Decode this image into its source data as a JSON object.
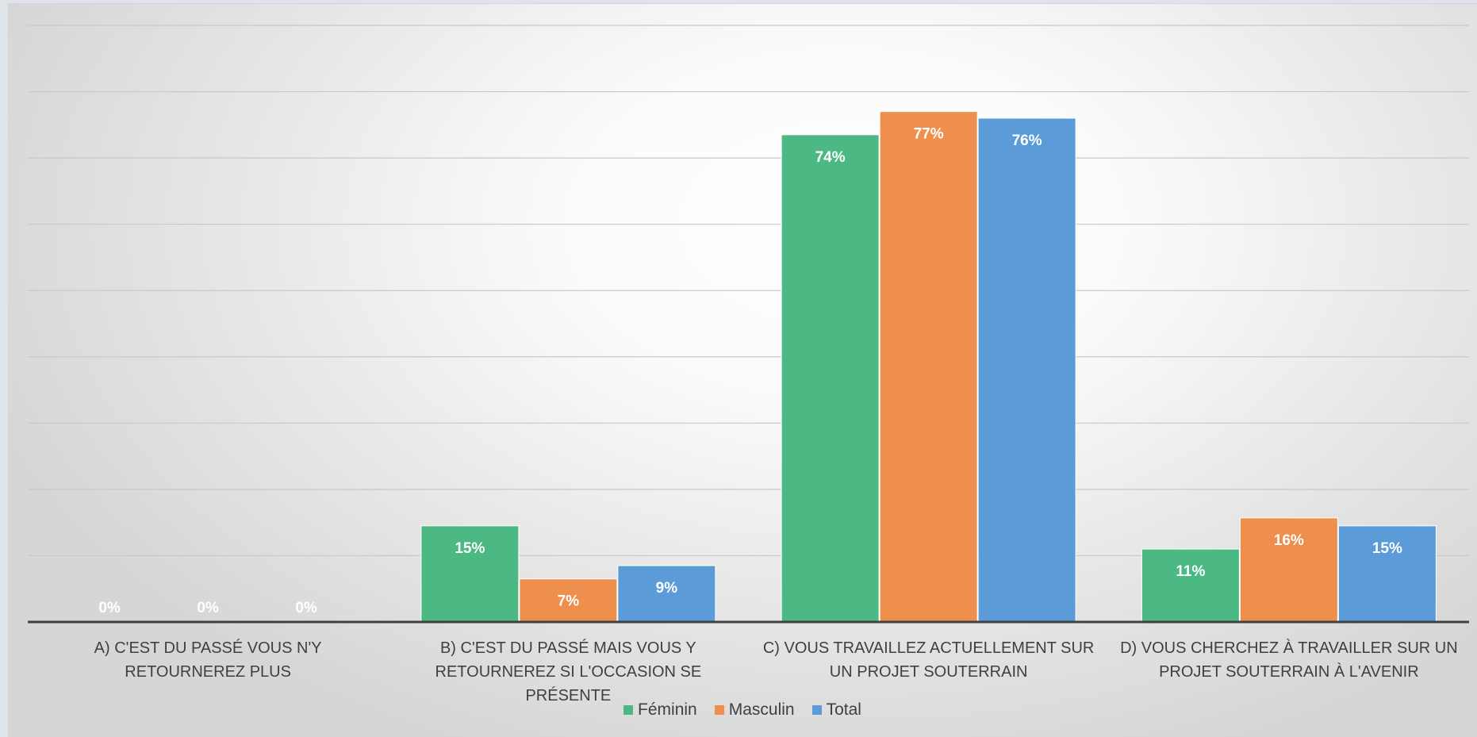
{
  "chart_data": {
    "type": "bar",
    "title": "",
    "xlabel": "",
    "ylabel": "",
    "ylim": [
      0,
      0.9
    ],
    "y_ticks": [
      0,
      0.1,
      0.2,
      0.3,
      0.4,
      0.5,
      0.6,
      0.7,
      0.8,
      0.9
    ],
    "grid": true,
    "y_axis_labels_visible": false,
    "legend_position": "bottom",
    "categories": [
      "A) C'EST DU PASSÉ VOUS N'Y RETOURNEREZ PLUS",
      "B) C'EST DU PASSÉ MAIS VOUS Y RETOURNEREZ SI L'OCCASION SE PRÉSENTE",
      "C) VOUS TRAVAILLEZ ACTUELLEMENT SUR UN PROJET SOUTERRAIN",
      "D) VOUS CHERCHEZ À TRAVAILLER SUR UN PROJET SOUTERRAIN À L'AVENIR"
    ],
    "series": [
      {
        "name": "Féminin",
        "color": "#4cb883",
        "values": [
          0,
          0.145,
          0.735,
          0.11
        ],
        "labels": [
          "0%",
          "15%",
          "74%",
          "11%"
        ]
      },
      {
        "name": "Masculin",
        "color": "#ef8f4e",
        "values": [
          0,
          0.065,
          0.77,
          0.157
        ],
        "labels": [
          "0%",
          "7%",
          "77%",
          "16%"
        ]
      },
      {
        "name": "Total",
        "color": "#5a9bd8",
        "values": [
          0,
          0.085,
          0.76,
          0.145
        ],
        "labels": [
          "0%",
          "9%",
          "76%",
          "15%"
        ]
      }
    ]
  }
}
